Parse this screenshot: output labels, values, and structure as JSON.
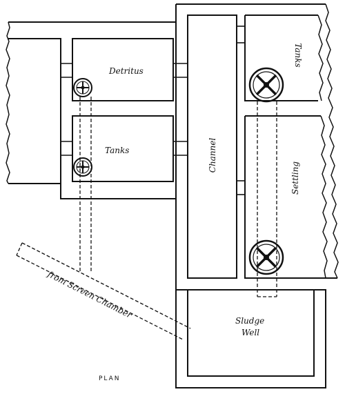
{
  "labels": {
    "detritus": "Detritus",
    "tanks_left": "Tanks",
    "channel": "Channel",
    "tanks_right": "Tanks",
    "settling": "Settling",
    "sludge": "Sludge",
    "well": "Well",
    "from_screen": "from Screen Chamber",
    "plan": "PLAN"
  },
  "icons": {
    "valve": "valve-wheel-icon"
  }
}
